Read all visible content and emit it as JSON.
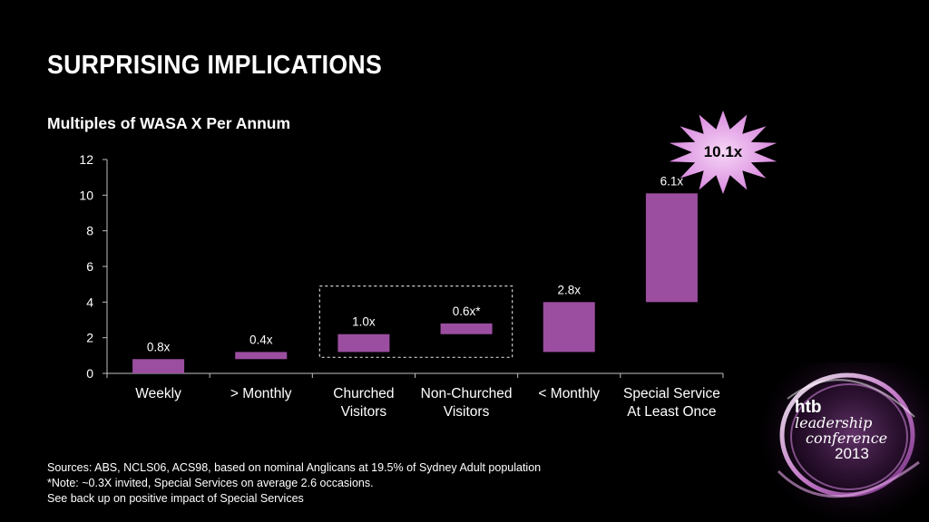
{
  "title": "SURPRISING IMPLICATIONS",
  "subtitle": "Multiples of  WASA X Per Annum",
  "callout": "10.1x",
  "chart_data": {
    "type": "bar",
    "subtype": "waterfall",
    "categories": [
      [
        "Weekly"
      ],
      [
        "> Monthly"
      ],
      [
        "Churched",
        "Visitors"
      ],
      [
        "Non-Churched",
        "Visitors"
      ],
      [
        "< Monthly"
      ],
      [
        "Special Service",
        "At Least Once"
      ]
    ],
    "starts": [
      0,
      0.8,
      1.2,
      2.2,
      1.2,
      4.0
    ],
    "ends": [
      0.8,
      1.2,
      2.2,
      2.8,
      4.0,
      10.1
    ],
    "data_labels": [
      "0.8x",
      "0.4x",
      "1.0x",
      "0.6x*",
      "2.8x",
      "6.1x"
    ],
    "yticks": [
      "0",
      "2",
      "4",
      "6",
      "8",
      "10",
      "12"
    ],
    "ylim": [
      0,
      12
    ],
    "bar_color": "#9b4ea0",
    "grid": false,
    "highlight_box_categories": [
      2,
      3
    ]
  },
  "footnotes": [
    "Sources: ABS, NCLS06, ACS98, based on nominal Anglicans at 19.5% of Sydney Adult population",
    "*Note: ~0.3X invited, Special Services on average 2.6 occasions.",
    " See back up on positive impact of Special Services"
  ],
  "logo": {
    "brand": "htb",
    "line1": "leadership",
    "line2": "conference",
    "year": "2013"
  },
  "colors": {
    "background": "#000000",
    "bar": "#9b4ea0",
    "callout": "#e8b0ea",
    "text": "#ffffff"
  }
}
